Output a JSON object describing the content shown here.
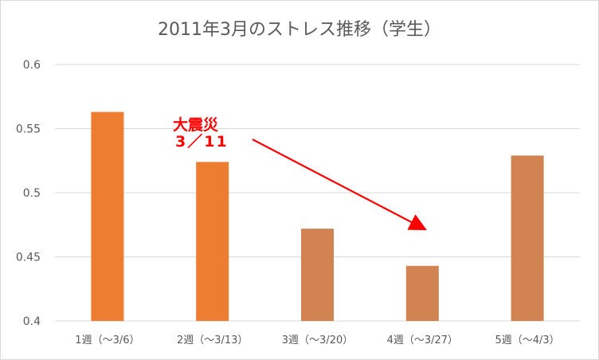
{
  "chart_data": {
    "type": "bar",
    "title": "2011年3月のストレス推移（学生）",
    "categories": [
      "1週（～3/6）",
      "2週（～3/13）",
      "3週（～3/20）",
      "4週（～3/27）",
      "5週（～4/3）"
    ],
    "values": [
      0.563,
      0.524,
      0.472,
      0.443,
      0.529
    ],
    "bar_colors": [
      "#ED7D31",
      "#ED7D31",
      "#D18352",
      "#D18352",
      "#D18352"
    ],
    "ylim": [
      0.4,
      0.6
    ],
    "yticks": [
      "0.4",
      "0.45",
      "0.5",
      "0.55",
      "0.6"
    ],
    "grid": true,
    "legend": "none",
    "annotation": {
      "line1": "大震災",
      "line2": "3／11",
      "color": "#FF0000"
    }
  }
}
